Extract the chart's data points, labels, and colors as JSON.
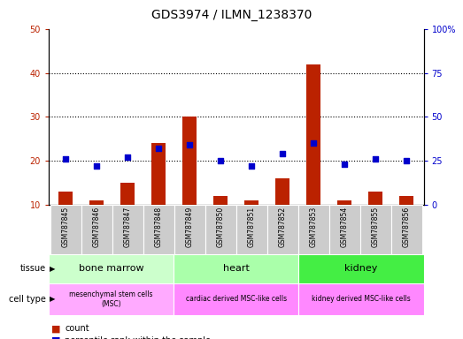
{
  "title": "GDS3974 / ILMN_1238370",
  "samples": [
    "GSM787845",
    "GSM787846",
    "GSM787847",
    "GSM787848",
    "GSM787849",
    "GSM787850",
    "GSM787851",
    "GSM787852",
    "GSM787853",
    "GSM787854",
    "GSM787855",
    "GSM787856"
  ],
  "counts": [
    13,
    11,
    15,
    24,
    30,
    12,
    11,
    16,
    42,
    11,
    13,
    12
  ],
  "percentiles": [
    26,
    22,
    27,
    32,
    34,
    25,
    22,
    29,
    35,
    23,
    26,
    25
  ],
  "left_ylim": [
    10,
    50
  ],
  "right_ylim": [
    0,
    100
  ],
  "left_yticks": [
    10,
    20,
    30,
    40,
    50
  ],
  "right_yticks": [
    0,
    25,
    50,
    75,
    100
  ],
  "right_yticklabels": [
    "0",
    "25",
    "50",
    "75",
    "100%"
  ],
  "bar_color": "#bb2200",
  "scatter_color": "#0000cc",
  "tissue_colors": [
    "#ccffcc",
    "#aaffaa",
    "#44ee44"
  ],
  "tissue_labels": [
    "bone marrow",
    "heart",
    "kidney"
  ],
  "tissue_starts": [
    0,
    4,
    8
  ],
  "tissue_ends": [
    4,
    8,
    12
  ],
  "cell_colors": [
    "#ffaaff",
    "#ff88ff",
    "#ff88ff"
  ],
  "cell_labels": [
    "mesenchymal stem cells\n(MSC)",
    "cardiac derived MSC-like cells",
    "kidney derived MSC-like cells"
  ],
  "cell_starts": [
    0,
    4,
    8
  ],
  "cell_ends": [
    4,
    8,
    12
  ],
  "sample_bg_color": "#cccccc",
  "title_fontsize": 10,
  "tick_fontsize": 7,
  "label_fontsize": 8,
  "small_fontsize": 6
}
